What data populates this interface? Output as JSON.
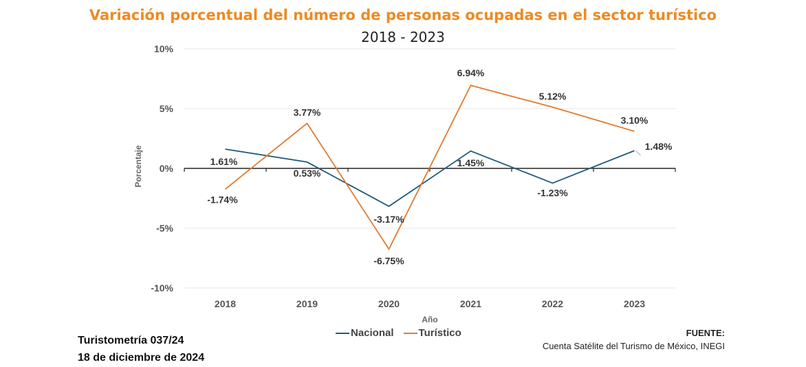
{
  "chart_data": {
    "type": "line",
    "title": "Variación porcentual del número de personas ocupadas en el sector turístico",
    "subtitle": "2018 - 2023",
    "xlabel": "Año",
    "ylabel": "Porcentaje",
    "categories": [
      "2018",
      "2019",
      "2020",
      "2021",
      "2022",
      "2023"
    ],
    "ylim": [
      -10,
      10
    ],
    "yticks": [
      10,
      5,
      0,
      -5,
      -10
    ],
    "ytick_labels": [
      "10%",
      "5%",
      "0%",
      "-5%",
      "-10%"
    ],
    "series": [
      {
        "name": "Nacional",
        "color": "#1F5C7A",
        "values": [
          1.61,
          0.53,
          -3.17,
          1.45,
          -1.23,
          1.48
        ],
        "labels": [
          "1.61%",
          "0.53%",
          "-3.17%",
          "1.45%",
          "-1.23%",
          "1.48%"
        ]
      },
      {
        "name": "Turístico",
        "color": "#E07A2E",
        "values": [
          -1.74,
          3.77,
          -6.75,
          6.94,
          5.12,
          3.1
        ],
        "labels": [
          "-1.74%",
          "3.77%",
          "-6.75%",
          "6.94%",
          "5.12%",
          "3.10%"
        ]
      }
    ],
    "grid": true,
    "legend": "bottom-center"
  },
  "footer": {
    "report": "Turistometría 037/24",
    "date": "18 de diciembre de 2024",
    "source_label": "FUENTE:",
    "source": "Cuenta Satélite del Turismo de México, INEGI"
  }
}
